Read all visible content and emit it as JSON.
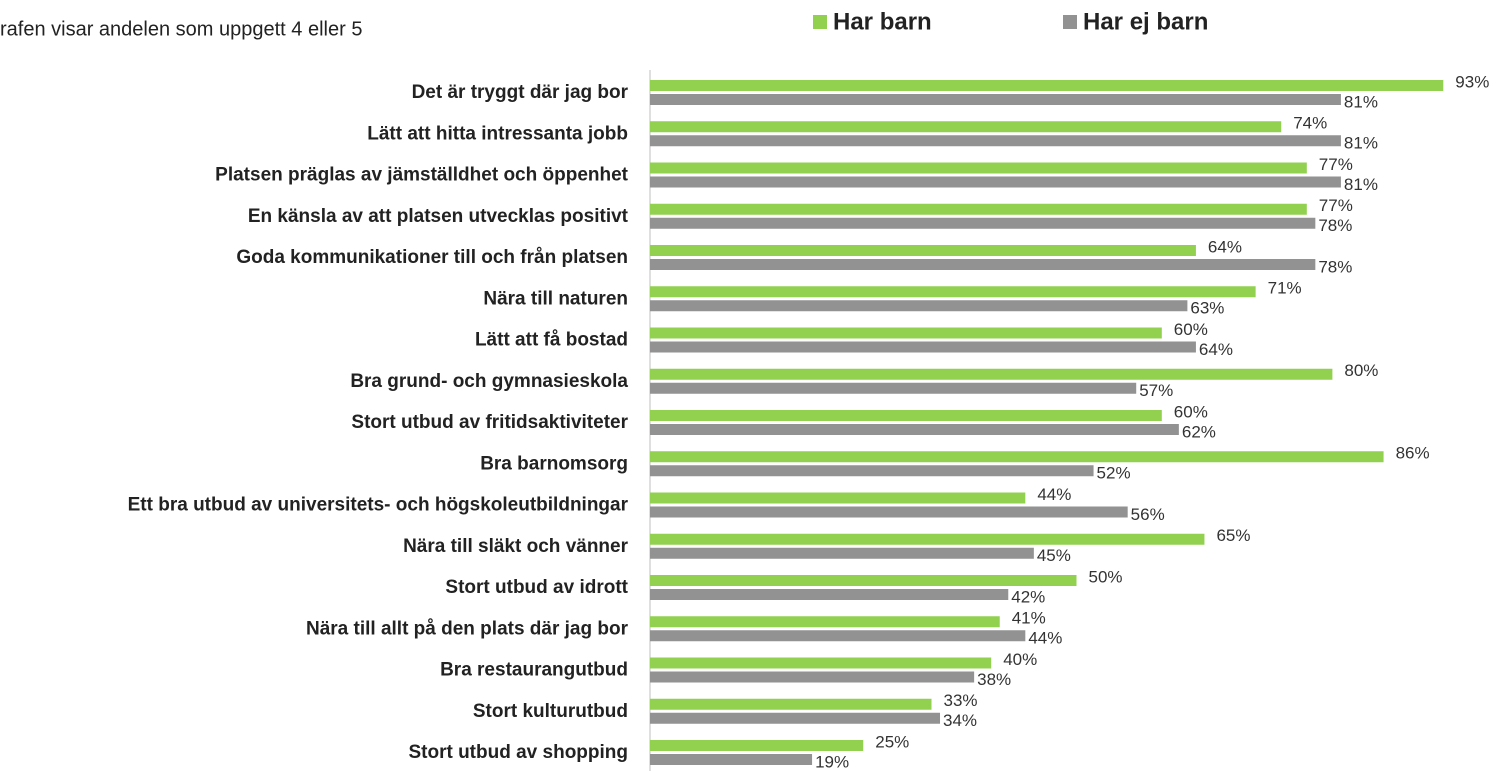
{
  "chart_data": {
    "type": "bar",
    "orientation": "horizontal",
    "subtitle": "rafen visar andelen som uppgett 4 eller 5",
    "categories": [
      "Det är tryggt där jag bor",
      "Lätt att hitta intressanta jobb",
      "Platsen präglas av jämställdhet och öppenhet",
      "En känsla av att platsen utvecklas positivt",
      "Goda kommunikationer till och från platsen",
      "Nära till naturen",
      "Lätt att få bostad",
      "Bra grund- och gymnasieskola",
      "Stort utbud av fritidsaktiviteter",
      "Bra barnomsorg",
      "Ett bra utbud av universitets- och högskoleutbildningar",
      "Nära till släkt och vänner",
      "Stort utbud av idrott",
      "Nära till allt på den plats där jag bor",
      "Bra restaurangutbud",
      "Stort kulturutbud",
      "Stort utbud av shopping"
    ],
    "series": [
      {
        "name": "Har barn",
        "color": "#92d050",
        "values": [
          93,
          74,
          77,
          77,
          64,
          71,
          60,
          80,
          60,
          86,
          44,
          65,
          50,
          41,
          40,
          33,
          25
        ],
        "value_labels": [
          "93%",
          "74%",
          "77%",
          "77%",
          "64%",
          "71%",
          "60%",
          "80%",
          "60%",
          "86%",
          "44%",
          "65%",
          "50%",
          "41%",
          "40%",
          "33%",
          "25%"
        ]
      },
      {
        "name": "Har ej barn",
        "color": "#929292",
        "values": [
          81,
          81,
          81,
          78,
          78,
          63,
          64,
          57,
          62,
          52,
          56,
          45,
          42,
          44,
          38,
          34,
          19
        ],
        "value_labels": [
          "81%",
          "81%",
          "81%",
          "78%",
          "78%",
          "63%",
          "64%",
          "57%",
          "62%",
          "52%",
          "56%",
          "45%",
          "42%",
          "44%",
          "38%",
          "34%",
          "19%"
        ]
      }
    ],
    "xlim": [
      0,
      100
    ],
    "legend": "top"
  }
}
